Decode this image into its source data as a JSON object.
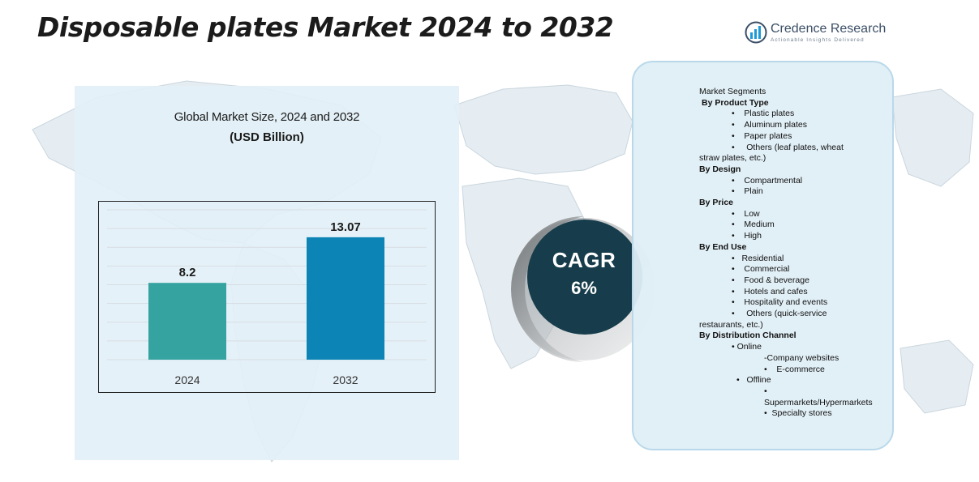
{
  "title": "Disposable plates Market 2024 to 2032",
  "logo": {
    "name": "Credence Research",
    "tagline": "Actionable Insights Delivered",
    "brand_color": "#3b4f66",
    "icon": "bar-chart-logo-icon"
  },
  "chart_data": {
    "type": "bar",
    "title": "Global Market Size, 2024 and 2032",
    "subtitle": "(USD Billion)",
    "categories": [
      "2024",
      "2032"
    ],
    "values": [
      8.2,
      13.07
    ],
    "data_labels": [
      "8.2",
      "13.07"
    ],
    "colors": [
      "#35a3a0",
      "#0c84b6"
    ],
    "ylim": [
      0,
      16
    ],
    "grid": true,
    "xlabel": "",
    "ylabel": ""
  },
  "cagr": {
    "label": "CAGR",
    "value": "6%",
    "color": "#173d4c"
  },
  "segments": {
    "heading": "Market Segments",
    "product_type": {
      "label": "By Product Type",
      "items": [
        "Plastic plates",
        "Aluminum plates",
        "Paper plates"
      ],
      "other_1": "Others (leaf plates, wheat",
      "other_2": "straw plates, etc.)"
    },
    "design": {
      "label": "By Design",
      "items": [
        "Compartmental",
        "Plain"
      ]
    },
    "price": {
      "label": "By Price",
      "items": [
        "Low",
        "Medium",
        "High"
      ]
    },
    "end_use": {
      "label": "By End Use",
      "items": [
        "Residential",
        "Commercial",
        "Food & beverage",
        "Hotels and cafes",
        "Hospitality and events"
      ],
      "other_1": "Others (quick-service",
      "other_2": "restaurants, etc.)"
    },
    "distribution": {
      "label": "By Distribution Channel",
      "online": "Online",
      "online_items": [
        "-Company websites",
        "E-commerce"
      ],
      "offline": "Offline",
      "offline_items": [
        "Supermarkets/Hypermarkets",
        "Specialty stores"
      ]
    }
  }
}
